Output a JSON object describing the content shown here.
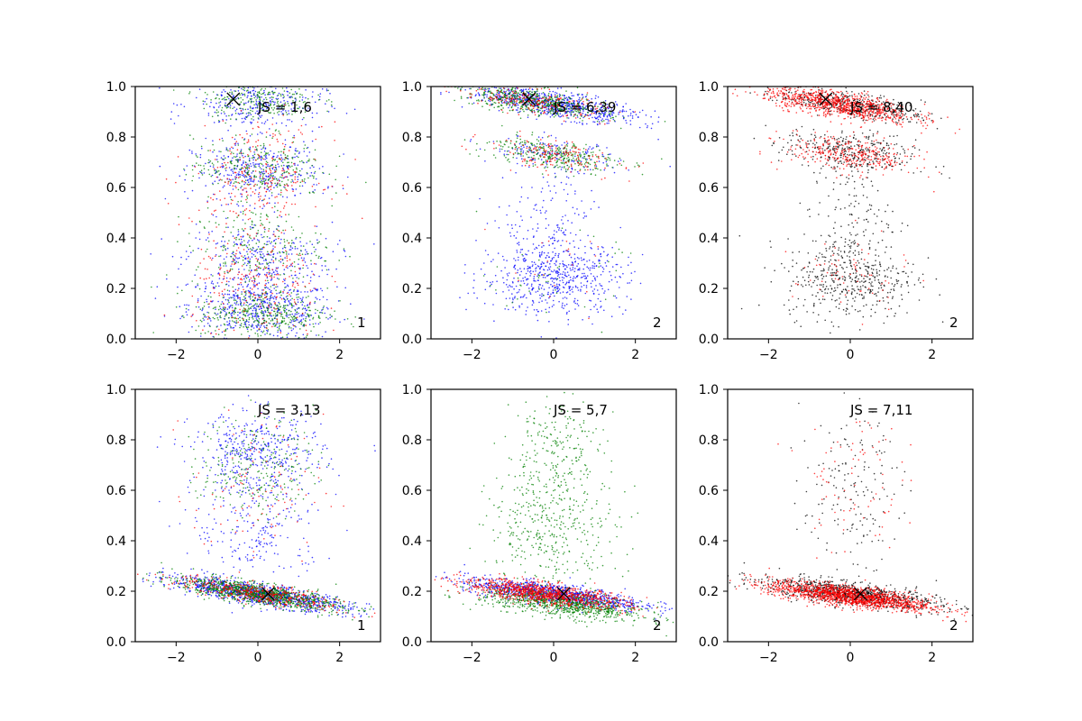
{
  "chart_data": [
    {
      "type": "scatter",
      "annotation": "JS = 1,6",
      "panel_label": "1",
      "xlim": [
        -3,
        3
      ],
      "ylim": [
        0,
        1
      ],
      "xticks": [
        -2,
        0,
        2
      ],
      "yticks": [
        0.0,
        0.2,
        0.4,
        0.6,
        0.8,
        1.0
      ],
      "xtick_labels": [
        "−2",
        "0",
        "2"
      ],
      "ytick_labels": [
        "0.0",
        "0.2",
        "0.4",
        "0.6",
        "0.8",
        "1.0"
      ],
      "marker": {
        "x": -0.6,
        "y": 0.95
      },
      "series": [
        {
          "color": "#0000ff",
          "count": 1500,
          "clusters": [
            {
              "cx": 0.1,
              "cy": 0.12,
              "sx": 0.9,
              "sy": 0.06,
              "w": 0.35,
              "slope": -0.01
            },
            {
              "cx": 0.0,
              "cy": 0.32,
              "sx": 0.9,
              "sy": 0.07,
              "w": 0.2,
              "slope": 0
            },
            {
              "cx": 0.0,
              "cy": 0.66,
              "sx": 0.8,
              "sy": 0.06,
              "w": 0.25,
              "slope": 0
            },
            {
              "cx": 0.0,
              "cy": 0.93,
              "sx": 0.8,
              "sy": 0.05,
              "w": 0.2,
              "slope": 0
            }
          ]
        },
        {
          "color": "#008000",
          "count": 1200,
          "clusters": [
            {
              "cx": 0.1,
              "cy": 0.1,
              "sx": 0.8,
              "sy": 0.05,
              "w": 0.35,
              "slope": 0
            },
            {
              "cx": 0.0,
              "cy": 0.36,
              "sx": 0.8,
              "sy": 0.08,
              "w": 0.2,
              "slope": 0
            },
            {
              "cx": 0.0,
              "cy": 0.68,
              "sx": 0.8,
              "sy": 0.06,
              "w": 0.25,
              "slope": 0
            },
            {
              "cx": 0.0,
              "cy": 0.95,
              "sx": 0.7,
              "sy": 0.04,
              "w": 0.2,
              "slope": 0
            }
          ]
        },
        {
          "color": "#ff0000",
          "count": 500,
          "clusters": [
            {
              "cx": 0.0,
              "cy": 0.2,
              "sx": 0.8,
              "sy": 0.12,
              "w": 0.5,
              "slope": 0
            },
            {
              "cx": 0.0,
              "cy": 0.65,
              "sx": 0.8,
              "sy": 0.1,
              "w": 0.5,
              "slope": 0
            }
          ]
        }
      ]
    },
    {
      "type": "scatter",
      "annotation": "JS = 6,39",
      "panel_label": "2",
      "xlim": [
        -3,
        3
      ],
      "ylim": [
        0,
        1
      ],
      "xticks": [
        -2,
        0,
        2
      ],
      "yticks": [
        0.0,
        0.2,
        0.4,
        0.6,
        0.8,
        1.0
      ],
      "xtick_labels": [
        "−2",
        "0",
        "2"
      ],
      "ytick_labels": [
        "0.0",
        "0.2",
        "0.4",
        "0.6",
        "0.8",
        "1.0"
      ],
      "marker": {
        "x": -0.6,
        "y": 0.95
      },
      "series": [
        {
          "color": "#0000ff",
          "count": 1600,
          "clusters": [
            {
              "cx": 0.0,
              "cy": 0.93,
              "sx": 1.0,
              "sy": 0.025,
              "w": 0.45,
              "slope": -0.025
            },
            {
              "cx": 0.0,
              "cy": 0.24,
              "sx": 0.9,
              "sy": 0.07,
              "w": 0.35,
              "slope": 0
            },
            {
              "cx": 0.0,
              "cy": 0.45,
              "sx": 0.6,
              "sy": 0.12,
              "w": 0.1,
              "slope": 0
            },
            {
              "cx": 0.0,
              "cy": 0.73,
              "sx": 0.8,
              "sy": 0.03,
              "w": 0.1,
              "slope": -0.02
            }
          ]
        },
        {
          "color": "#008000",
          "count": 900,
          "clusters": [
            {
              "cx": -0.5,
              "cy": 0.94,
              "sx": 0.9,
              "sy": 0.025,
              "w": 0.6,
              "slope": -0.025
            },
            {
              "cx": 0.0,
              "cy": 0.73,
              "sx": 0.8,
              "sy": 0.03,
              "w": 0.35,
              "slope": -0.02
            },
            {
              "cx": 0.0,
              "cy": 0.25,
              "sx": 0.8,
              "sy": 0.08,
              "w": 0.05,
              "slope": 0
            }
          ]
        },
        {
          "color": "#ff0000",
          "count": 400,
          "clusters": [
            {
              "cx": -0.5,
              "cy": 0.94,
              "sx": 0.9,
              "sy": 0.025,
              "w": 0.55,
              "slope": -0.025
            },
            {
              "cx": 0.0,
              "cy": 0.73,
              "sx": 0.8,
              "sy": 0.03,
              "w": 0.4,
              "slope": -0.02
            },
            {
              "cx": 0.0,
              "cy": 0.25,
              "sx": 0.8,
              "sy": 0.08,
              "w": 0.05,
              "slope": 0
            }
          ]
        }
      ]
    },
    {
      "type": "scatter",
      "annotation": "JS = 8,40",
      "panel_label": "2",
      "xlim": [
        -3,
        3
      ],
      "ylim": [
        0,
        1
      ],
      "xticks": [
        -2,
        0,
        2
      ],
      "yticks": [
        0.0,
        0.2,
        0.4,
        0.6,
        0.8,
        1.0
      ],
      "xtick_labels": [
        "−2",
        "0",
        "2"
      ],
      "ytick_labels": [
        "0.0",
        "0.2",
        "0.4",
        "0.6",
        "0.8",
        "1.0"
      ],
      "marker": {
        "x": -0.6,
        "y": 0.95
      },
      "series": [
        {
          "color": "#000000",
          "count": 1300,
          "clusters": [
            {
              "cx": 0.0,
              "cy": 0.93,
              "sx": 0.9,
              "sy": 0.025,
              "w": 0.3,
              "slope": -0.025
            },
            {
              "cx": 0.0,
              "cy": 0.74,
              "sx": 0.8,
              "sy": 0.04,
              "w": 0.25,
              "slope": -0.02
            },
            {
              "cx": 0.0,
              "cy": 0.24,
              "sx": 0.8,
              "sy": 0.08,
              "w": 0.35,
              "slope": 0
            },
            {
              "cx": 0.0,
              "cy": 0.5,
              "sx": 0.5,
              "sy": 0.12,
              "w": 0.1,
              "slope": 0
            }
          ]
        },
        {
          "color": "#ff0000",
          "count": 1300,
          "clusters": [
            {
              "cx": -0.3,
              "cy": 0.93,
              "sx": 0.9,
              "sy": 0.025,
              "w": 0.7,
              "slope": -0.025
            },
            {
              "cx": 0.0,
              "cy": 0.73,
              "sx": 0.8,
              "sy": 0.035,
              "w": 0.25,
              "slope": -0.02
            },
            {
              "cx": 0.0,
              "cy": 0.25,
              "sx": 0.7,
              "sy": 0.08,
              "w": 0.05,
              "slope": 0
            }
          ]
        }
      ]
    },
    {
      "type": "scatter",
      "annotation": "JS = 3,13",
      "panel_label": "1",
      "xlim": [
        -3,
        3
      ],
      "ylim": [
        0,
        1
      ],
      "xticks": [
        -2,
        0,
        2
      ],
      "yticks": [
        0.0,
        0.2,
        0.4,
        0.6,
        0.8,
        1.0
      ],
      "xtick_labels": [
        "−2",
        "0",
        "2"
      ],
      "ytick_labels": [
        "0.0",
        "0.2",
        "0.4",
        "0.6",
        "0.8",
        "1.0"
      ],
      "marker": {
        "x": 0.25,
        "y": 0.19
      },
      "series": [
        {
          "color": "#0000ff",
          "count": 1600,
          "clusters": [
            {
              "cx": 0.0,
              "cy": 0.19,
              "sx": 1.1,
              "sy": 0.02,
              "w": 0.6,
              "slope": -0.025
            },
            {
              "cx": 0.0,
              "cy": 0.45,
              "sx": 0.8,
              "sy": 0.12,
              "w": 0.15,
              "slope": 0
            },
            {
              "cx": 0.0,
              "cy": 0.75,
              "sx": 0.8,
              "sy": 0.08,
              "w": 0.25,
              "slope": 0
            }
          ]
        },
        {
          "color": "#008000",
          "count": 1300,
          "clusters": [
            {
              "cx": 0.0,
              "cy": 0.19,
              "sx": 1.0,
              "sy": 0.02,
              "w": 0.8,
              "slope": -0.025
            },
            {
              "cx": 0.0,
              "cy": 0.7,
              "sx": 0.7,
              "sy": 0.1,
              "w": 0.2,
              "slope": 0
            }
          ]
        },
        {
          "color": "#ff0000",
          "count": 500,
          "clusters": [
            {
              "cx": 0.0,
              "cy": 0.19,
              "sx": 1.0,
              "sy": 0.02,
              "w": 0.8,
              "slope": -0.025
            },
            {
              "cx": 0.0,
              "cy": 0.6,
              "sx": 0.8,
              "sy": 0.15,
              "w": 0.2,
              "slope": 0
            }
          ]
        }
      ]
    },
    {
      "type": "scatter",
      "annotation": "JS = 5,7",
      "panel_label": "2",
      "xlim": [
        -3,
        3
      ],
      "ylim": [
        0,
        1
      ],
      "xticks": [
        -2,
        0,
        2
      ],
      "yticks": [
        0.0,
        0.2,
        0.4,
        0.6,
        0.8,
        1.0
      ],
      "xtick_labels": [
        "−2",
        "0",
        "2"
      ],
      "ytick_labels": [
        "0.0",
        "0.2",
        "0.4",
        "0.6",
        "0.8",
        "1.0"
      ],
      "marker": {
        "x": 0.25,
        "y": 0.19
      },
      "series": [
        {
          "color": "#0000ff",
          "count": 1000,
          "clusters": [
            {
              "cx": 0.0,
              "cy": 0.19,
              "sx": 1.1,
              "sy": 0.02,
              "w": 1.0,
              "slope": -0.02
            }
          ]
        },
        {
          "color": "#008000",
          "count": 1500,
          "clusters": [
            {
              "cx": 0.2,
              "cy": 0.15,
              "sx": 1.0,
              "sy": 0.025,
              "w": 0.6,
              "slope": -0.02
            },
            {
              "cx": 0.0,
              "cy": 0.45,
              "sx": 0.8,
              "sy": 0.12,
              "w": 0.25,
              "slope": 0
            },
            {
              "cx": 0.0,
              "cy": 0.75,
              "sx": 0.6,
              "sy": 0.12,
              "w": 0.15,
              "slope": 0
            }
          ]
        },
        {
          "color": "#ff0000",
          "count": 1000,
          "clusters": [
            {
              "cx": -0.2,
              "cy": 0.19,
              "sx": 1.0,
              "sy": 0.02,
              "w": 1.0,
              "slope": -0.02
            }
          ]
        }
      ]
    },
    {
      "type": "scatter",
      "annotation": "JS = 7,11",
      "panel_label": "2",
      "xlim": [
        -3,
        3
      ],
      "ylim": [
        0,
        1
      ],
      "xticks": [
        -2,
        0,
        2
      ],
      "yticks": [
        0.0,
        0.2,
        0.4,
        0.6,
        0.8,
        1.0
      ],
      "xtick_labels": [
        "−2",
        "0",
        "2"
      ],
      "ytick_labels": [
        "0.0",
        "0.2",
        "0.4",
        "0.6",
        "0.8",
        "1.0"
      ],
      "marker": {
        "x": 0.25,
        "y": 0.19
      },
      "series": [
        {
          "color": "#000000",
          "count": 1100,
          "clusters": [
            {
              "cx": 0.0,
              "cy": 0.19,
              "sx": 1.1,
              "sy": 0.022,
              "w": 0.85,
              "slope": -0.02
            },
            {
              "cx": 0.0,
              "cy": 0.6,
              "sx": 0.6,
              "sy": 0.15,
              "w": 0.15,
              "slope": 0
            }
          ]
        },
        {
          "color": "#ff0000",
          "count": 1600,
          "clusters": [
            {
              "cx": 0.0,
              "cy": 0.18,
              "sx": 1.0,
              "sy": 0.02,
              "w": 0.95,
              "slope": -0.02
            },
            {
              "cx": 0.0,
              "cy": 0.65,
              "sx": 0.6,
              "sy": 0.15,
              "w": 0.05,
              "slope": 0
            }
          ]
        }
      ]
    }
  ]
}
